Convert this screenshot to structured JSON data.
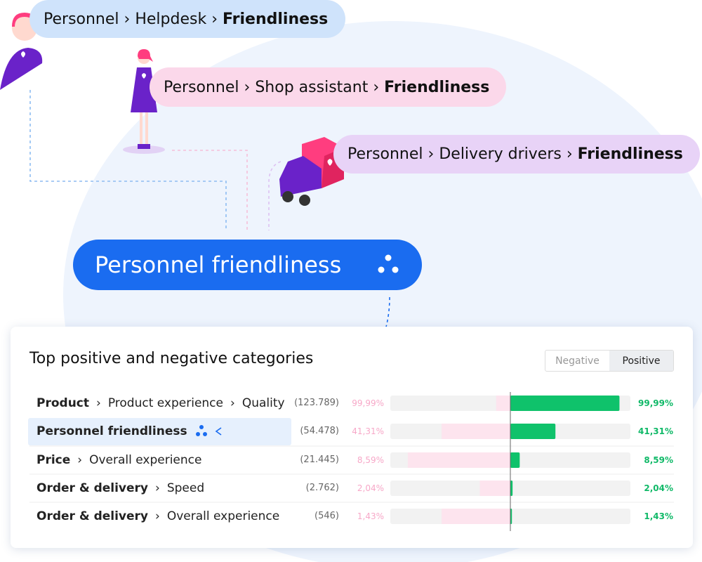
{
  "separator": "›",
  "flow": {
    "sources": [
      {
        "parts": [
          "Personnel",
          "Helpdesk"
        ],
        "bold": "Friendliness"
      },
      {
        "parts": [
          "Personnel",
          "Shop assistant"
        ],
        "bold": "Friendliness"
      },
      {
        "parts": [
          "Personnel",
          "Delivery drivers"
        ],
        "bold": "Friendliness"
      }
    ],
    "target": "Personnel friendliness"
  },
  "card": {
    "title": "Top positive and negative categories",
    "tabs": [
      "Negative",
      "Positive"
    ],
    "active_tab": 1,
    "xlim": [
      -110,
      110
    ],
    "rows": [
      {
        "parts": [
          "Product",
          "Product experience",
          "Quality"
        ],
        "count": "(123.789)",
        "negative": 13,
        "share": 99.99,
        "share_label": "99,99%"
      },
      {
        "parts": [
          "Personnel friendliness"
        ],
        "count": "(54.478)",
        "negative": 63,
        "share": 41.31,
        "share_label": "41,31%"
      },
      {
        "parts": [
          "Price",
          "Overall experience"
        ],
        "count": "(21.445)",
        "negative": 94,
        "share": 8.59,
        "share_label": "8,59%"
      },
      {
        "parts": [
          "Order & delivery",
          "Speed"
        ],
        "count": "(2.762)",
        "negative": 28,
        "share": 2.04,
        "share_label": "2,04%"
      },
      {
        "parts": [
          "Order & delivery",
          "Overall experience"
        ],
        "count": "(546)",
        "negative": 63,
        "share": 1.43,
        "share_label": "1,43%"
      }
    ]
  }
}
